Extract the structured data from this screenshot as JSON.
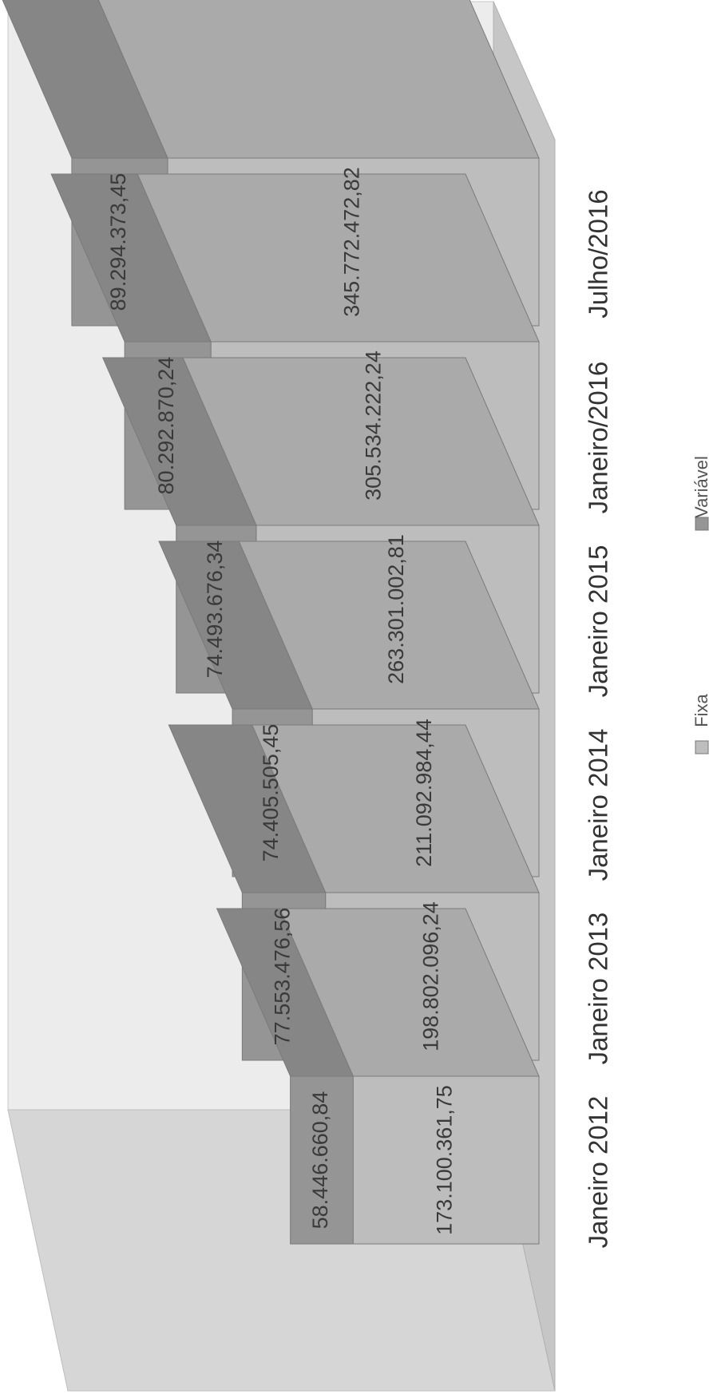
{
  "chart_data": {
    "type": "bar",
    "stacked": true,
    "three_d": true,
    "orientation": "rotated-90",
    "categories": [
      "Janeiro 2012",
      "Janeiro 2013",
      "Janeiro 2014",
      "Janeiro 2015",
      "Janeiro/2016",
      "Julho/2016"
    ],
    "series": [
      {
        "name": "Fixa",
        "values": [
          173100361.75,
          198802096.24,
          211092984.44,
          263301002.81,
          305534222.24,
          345772472.82
        ],
        "labels": [
          "173.100.361,75",
          "198.802.096,24",
          "211.092.984,44",
          "263.301.002,81",
          "305.534.222,24",
          "345.772.472,82"
        ],
        "color": "#bdbdbd"
      },
      {
        "name": "Variável",
        "values": [
          58446660.84,
          77553476.56,
          74405505.45,
          74493676.34,
          80292870.24,
          89294373.45
        ],
        "labels": [
          "58.446.660,84",
          "77.553.476,56",
          "74.405.505,45",
          "74.493.676,34",
          "80.292.870,24",
          "89.294.373,45"
        ],
        "color": "#959595"
      }
    ],
    "grid": false,
    "legend_position": "bottom"
  }
}
